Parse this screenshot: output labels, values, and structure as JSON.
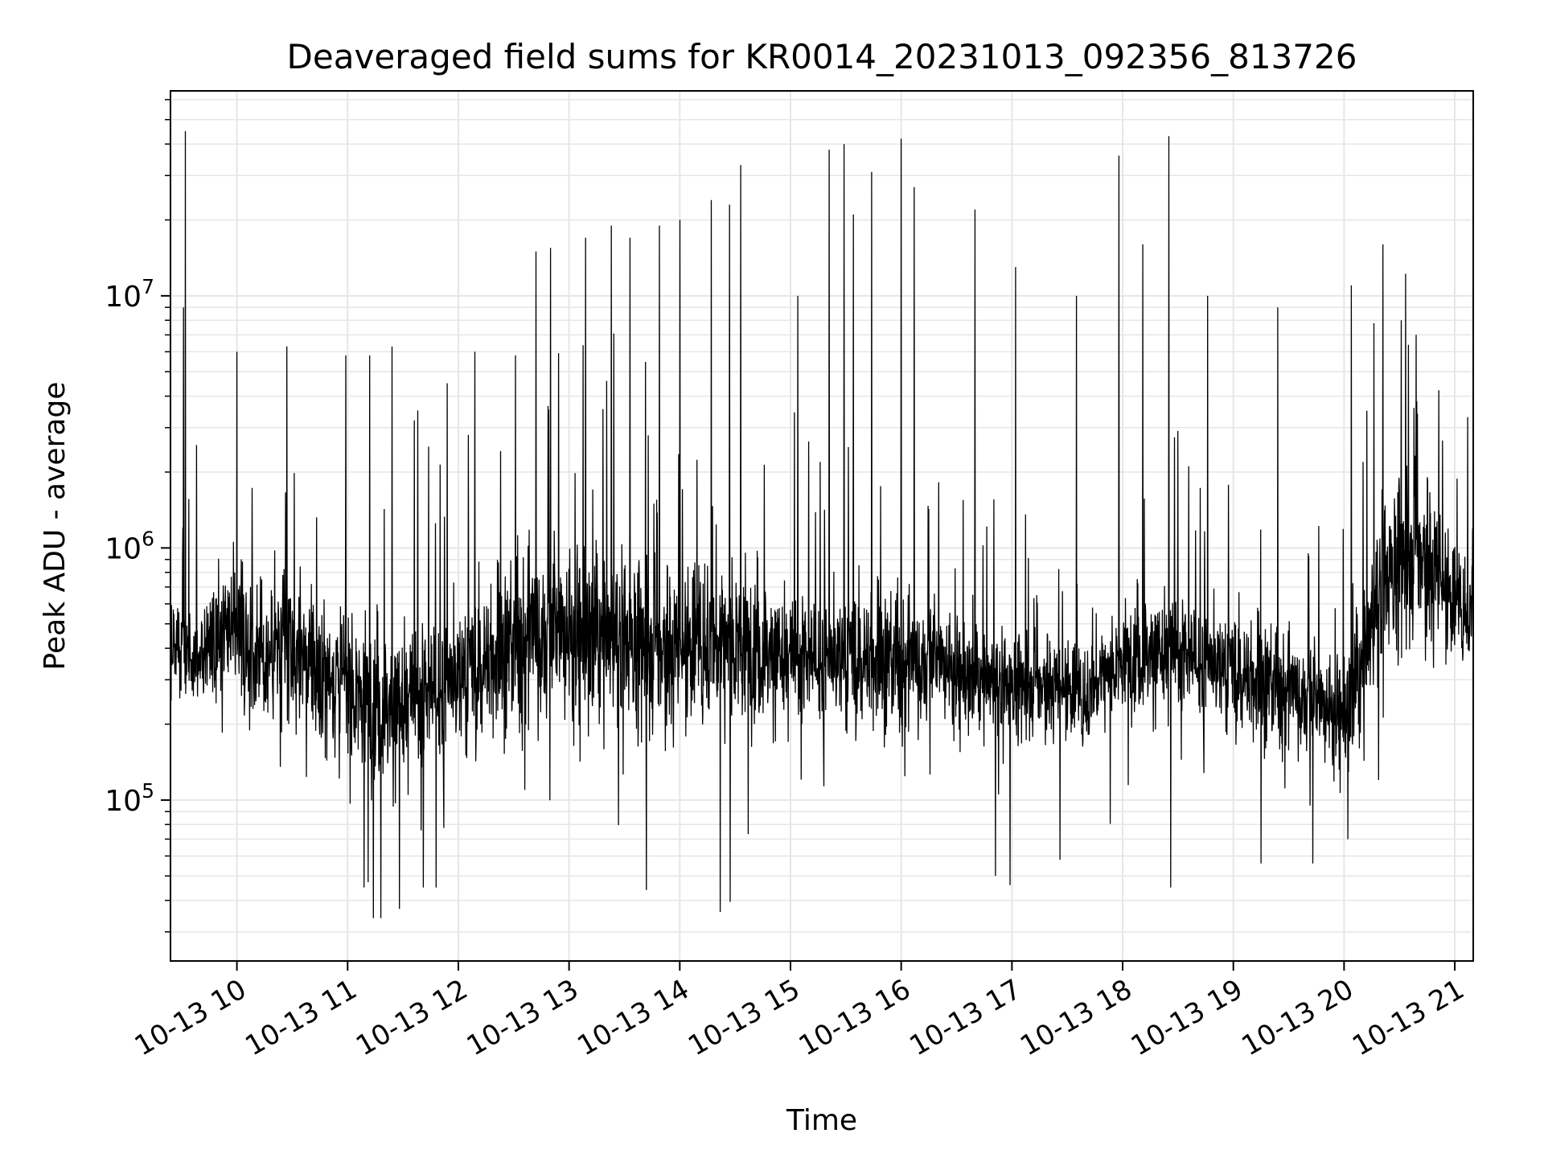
{
  "chart_data": {
    "type": "line",
    "title": "Deaveraged field sums for KR0014_20231013_092356_813726",
    "xlabel": "Time",
    "ylabel": "Peak ADU - average",
    "yscale": "log",
    "xlim": [
      "2023-10-13T09:24:00",
      "2023-10-13T21:10:00"
    ],
    "ylim": [
      23000,
      65000000
    ],
    "grid": true,
    "line_color": "#000000",
    "x_ticks": [
      {
        "t": "2023-10-13T10:00:00",
        "label": "10-13 10"
      },
      {
        "t": "2023-10-13T11:00:00",
        "label": "10-13 11"
      },
      {
        "t": "2023-10-13T12:00:00",
        "label": "10-13 12"
      },
      {
        "t": "2023-10-13T13:00:00",
        "label": "10-13 13"
      },
      {
        "t": "2023-10-13T14:00:00",
        "label": "10-13 14"
      },
      {
        "t": "2023-10-13T15:00:00",
        "label": "10-13 15"
      },
      {
        "t": "2023-10-13T16:00:00",
        "label": "10-13 16"
      },
      {
        "t": "2023-10-13T17:00:00",
        "label": "10-13 17"
      },
      {
        "t": "2023-10-13T18:00:00",
        "label": "10-13 18"
      },
      {
        "t": "2023-10-13T19:00:00",
        "label": "10-13 19"
      },
      {
        "t": "2023-10-13T20:00:00",
        "label": "10-13 20"
      },
      {
        "t": "2023-10-13T21:00:00",
        "label": "10-13 21"
      }
    ],
    "y_ticks": [
      {
        "value": 100000,
        "base": "10",
        "exp": "5"
      },
      {
        "value": 1000000,
        "base": "10",
        "exp": "6"
      },
      {
        "value": 10000000,
        "base": "10",
        "exp": "7"
      }
    ],
    "series": [
      {
        "x": [
          "2023-10-13T09:24:00",
          "2023-10-13T09:30:00",
          "2023-10-13T09:36:00",
          "2023-10-13T09:42:00",
          "2023-10-13T09:48:00",
          "2023-10-13T09:54:00",
          "2023-10-13T10:00:00",
          "2023-10-13T10:10:00",
          "2023-10-13T10:20:00",
          "2023-10-13T10:30:00",
          "2023-10-13T10:40:00",
          "2023-10-13T10:50:00",
          "2023-10-13T11:00:00",
          "2023-10-13T11:10:00",
          "2023-10-13T11:20:00",
          "2023-10-13T11:30:00",
          "2023-10-13T11:40:00",
          "2023-10-13T11:50:00",
          "2023-10-13T12:00:00",
          "2023-10-13T12:10:00",
          "2023-10-13T12:20:00",
          "2023-10-13T12:30:00",
          "2023-10-13T12:40:00",
          "2023-10-13T12:50:00",
          "2023-10-13T13:00:00",
          "2023-10-13T13:10:00",
          "2023-10-13T13:20:00",
          "2023-10-13T13:30:00",
          "2023-10-13T13:40:00",
          "2023-10-13T13:50:00",
          "2023-10-13T14:00:00",
          "2023-10-13T14:10:00",
          "2023-10-13T14:20:00",
          "2023-10-13T14:30:00",
          "2023-10-13T14:40:00",
          "2023-10-13T14:50:00",
          "2023-10-13T15:00:00",
          "2023-10-13T15:10:00",
          "2023-10-13T15:20:00",
          "2023-10-13T15:30:00",
          "2023-10-13T15:40:00",
          "2023-10-13T15:50:00",
          "2023-10-13T16:00:00",
          "2023-10-13T16:10:00",
          "2023-10-13T16:20:00",
          "2023-10-13T16:30:00",
          "2023-10-13T16:40:00",
          "2023-10-13T16:50:00",
          "2023-10-13T17:00:00",
          "2023-10-13T17:10:00",
          "2023-10-13T17:20:00",
          "2023-10-13T17:30:00",
          "2023-10-13T17:40:00",
          "2023-10-13T17:50:00",
          "2023-10-13T18:00:00",
          "2023-10-13T18:10:00",
          "2023-10-13T18:20:00",
          "2023-10-13T18:30:00",
          "2023-10-13T18:40:00",
          "2023-10-13T18:50:00",
          "2023-10-13T19:00:00",
          "2023-10-13T19:10:00",
          "2023-10-13T19:20:00",
          "2023-10-13T19:30:00",
          "2023-10-13T19:40:00",
          "2023-10-13T19:50:00",
          "2023-10-13T20:00:00",
          "2023-10-13T20:10:00",
          "2023-10-13T20:20:00",
          "2023-10-13T20:30:00",
          "2023-10-13T20:40:00",
          "2023-10-13T20:50:00",
          "2023-10-13T21:00:00",
          "2023-10-13T21:10:00"
        ],
        "median": [
          400000,
          380000,
          360000,
          380000,
          420000,
          450000,
          450000,
          420000,
          380000,
          380000,
          340000,
          300000,
          280000,
          250000,
          230000,
          240000,
          260000,
          280000,
          300000,
          330000,
          370000,
          420000,
          470000,
          470000,
          450000,
          450000,
          430000,
          430000,
          420000,
          400000,
          400000,
          420000,
          420000,
          420000,
          400000,
          380000,
          360000,
          360000,
          360000,
          360000,
          360000,
          360000,
          360000,
          360000,
          360000,
          320000,
          300000,
          290000,
          290000,
          290000,
          290000,
          280000,
          250000,
          320000,
          360000,
          380000,
          380000,
          380000,
          360000,
          340000,
          320000,
          300000,
          290000,
          280000,
          260000,
          230000,
          220000,
          330000,
          700000,
          900000,
          1000000,
          800000,
          600000,
          560000
        ],
        "spread": [
          0.3,
          0.3,
          0.3,
          0.3,
          0.35,
          0.35,
          0.4,
          0.4,
          0.4,
          0.4,
          0.45,
          0.45,
          0.45,
          0.45,
          0.45,
          0.45,
          0.45,
          0.45,
          0.45,
          0.45,
          0.45,
          0.5,
          0.55,
          0.55,
          0.55,
          0.55,
          0.5,
          0.5,
          0.5,
          0.5,
          0.5,
          0.5,
          0.5,
          0.5,
          0.45,
          0.4,
          0.4,
          0.4,
          0.4,
          0.4,
          0.4,
          0.4,
          0.4,
          0.4,
          0.35,
          0.35,
          0.3,
          0.3,
          0.3,
          0.3,
          0.3,
          0.3,
          0.3,
          0.3,
          0.3,
          0.35,
          0.35,
          0.35,
          0.35,
          0.35,
          0.35,
          0.35,
          0.35,
          0.35,
          0.35,
          0.35,
          0.35,
          0.45,
          0.5,
          0.5,
          0.5,
          0.5,
          0.35,
          0.3
        ],
        "peaks": [
          {
            "t": "2023-10-13T09:32:00",
            "value": 45000000
          },
          {
            "t": "2023-10-13T09:31:00",
            "value": 9000000
          },
          {
            "t": "2023-10-13T10:00:00",
            "value": 6000000
          },
          {
            "t": "2023-10-13T10:27:00",
            "value": 6300000
          },
          {
            "t": "2023-10-13T10:59:00",
            "value": 5800000
          },
          {
            "t": "2023-10-13T11:12:00",
            "value": 5800000
          },
          {
            "t": "2023-10-13T11:24:00",
            "value": 6300000
          },
          {
            "t": "2023-10-13T11:54:00",
            "value": 4500000
          },
          {
            "t": "2023-10-13T12:09:00",
            "value": 6000000
          },
          {
            "t": "2023-10-13T12:31:00",
            "value": 5800000
          },
          {
            "t": "2023-10-13T12:42:00",
            "value": 15000000
          },
          {
            "t": "2023-10-13T12:50:00",
            "value": 15500000
          },
          {
            "t": "2023-10-13T13:09:00",
            "value": 17000000
          },
          {
            "t": "2023-10-13T13:23:00",
            "value": 19000000
          },
          {
            "t": "2023-10-13T13:33:00",
            "value": 17000000
          },
          {
            "t": "2023-10-13T13:49:00",
            "value": 19000000
          },
          {
            "t": "2023-10-13T14:00:00",
            "value": 20000000
          },
          {
            "t": "2023-10-13T14:17:00",
            "value": 24000000
          },
          {
            "t": "2023-10-13T14:27:00",
            "value": 23000000
          },
          {
            "t": "2023-10-13T14:33:00",
            "value": 33000000
          },
          {
            "t": "2023-10-13T15:04:00",
            "value": 10000000
          },
          {
            "t": "2023-10-13T15:21:00",
            "value": 38000000
          },
          {
            "t": "2023-10-13T15:29:00",
            "value": 40000000
          },
          {
            "t": "2023-10-13T15:34:00",
            "value": 21000000
          },
          {
            "t": "2023-10-13T15:44:00",
            "value": 31000000
          },
          {
            "t": "2023-10-13T16:00:00",
            "value": 42000000
          },
          {
            "t": "2023-10-13T16:07:00",
            "value": 27000000
          },
          {
            "t": "2023-10-13T16:40:00",
            "value": 22000000
          },
          {
            "t": "2023-10-13T17:02:00",
            "value": 13000000
          },
          {
            "t": "2023-10-13T17:35:00",
            "value": 10000000
          },
          {
            "t": "2023-10-13T17:58:00",
            "value": 36000000
          },
          {
            "t": "2023-10-13T18:11:00",
            "value": 16000000
          },
          {
            "t": "2023-10-13T18:25:00",
            "value": 43000000
          },
          {
            "t": "2023-10-13T18:46:00",
            "value": 10000000
          },
          {
            "t": "2023-10-13T19:24:00",
            "value": 9000000
          },
          {
            "t": "2023-10-13T20:04:00",
            "value": 11000000
          },
          {
            "t": "2023-10-13T20:21:00",
            "value": 16000000
          },
          {
            "t": "2023-10-13T20:31:00",
            "value": 8000000
          },
          {
            "t": "2023-10-13T20:39:00",
            "value": 7000000
          },
          {
            "t": "2023-10-13T21:07:00",
            "value": 3300000
          }
        ],
        "dips": [
          {
            "t": "2023-10-13T11:09:00",
            "value": 45000
          },
          {
            "t": "2023-10-13T11:14:00",
            "value": 34000
          },
          {
            "t": "2023-10-13T11:18:00",
            "value": 34000
          },
          {
            "t": "2023-10-13T11:28:00",
            "value": 37000
          },
          {
            "t": "2023-10-13T11:41:00",
            "value": 45000
          },
          {
            "t": "2023-10-13T11:48:00",
            "value": 45000
          },
          {
            "t": "2023-10-13T13:42:00",
            "value": 44000
          },
          {
            "t": "2023-10-13T14:22:00",
            "value": 36000
          },
          {
            "t": "2023-10-13T16:51:00",
            "value": 50000
          },
          {
            "t": "2023-10-13T16:59:00",
            "value": 46000
          },
          {
            "t": "2023-10-13T18:26:00",
            "value": 45000
          },
          {
            "t": "2023-10-13T19:15:00",
            "value": 56000
          },
          {
            "t": "2023-10-13T19:43:00",
            "value": 56000
          },
          {
            "t": "2023-10-13T17:26:00",
            "value": 58000
          },
          {
            "t": "2023-10-13T20:02:00",
            "value": 70000
          }
        ]
      }
    ]
  }
}
